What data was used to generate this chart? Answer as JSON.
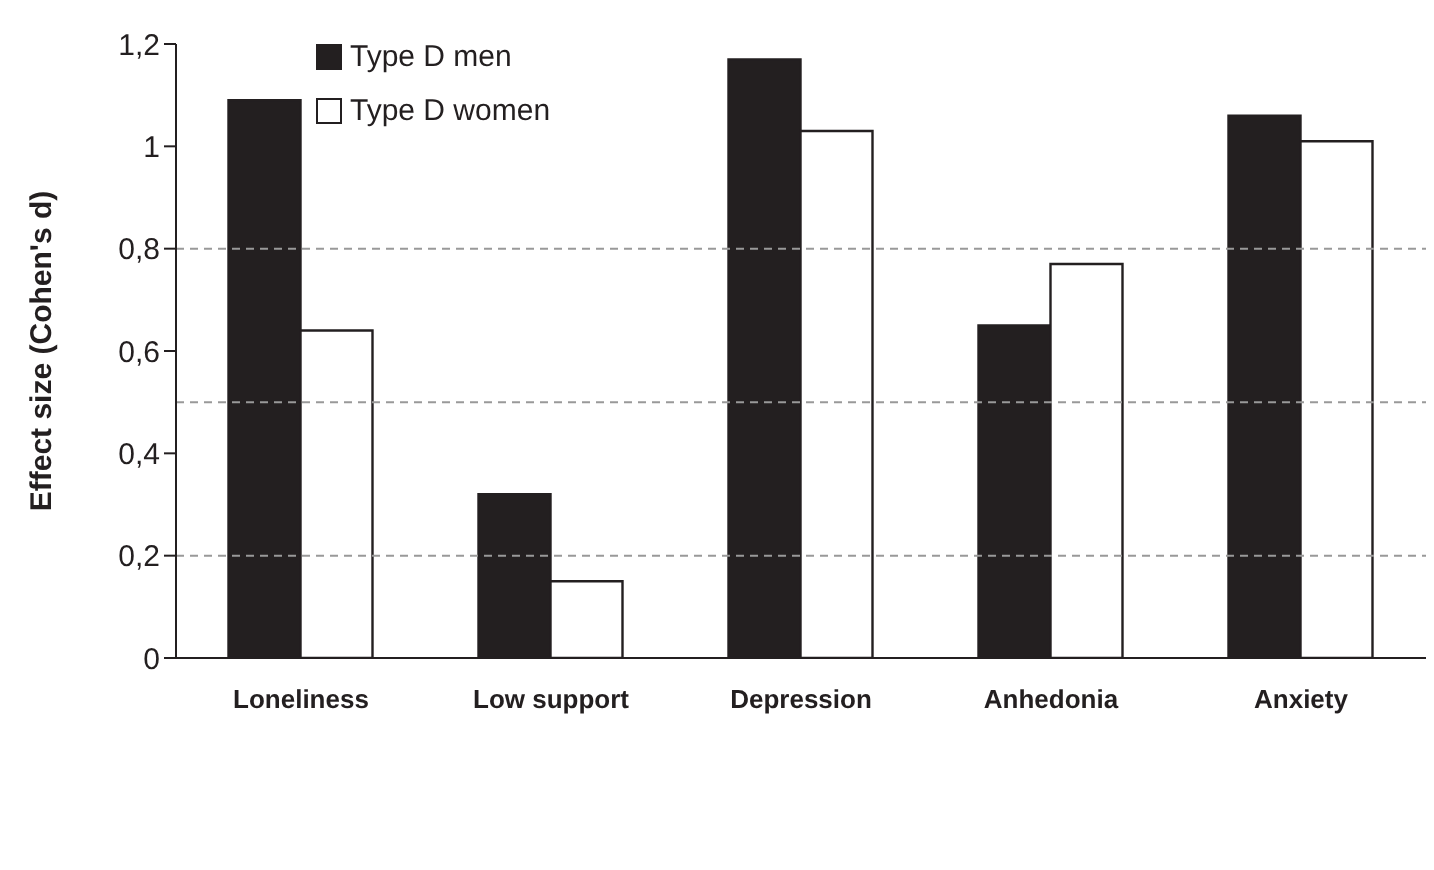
{
  "chart_data": {
    "type": "bar",
    "ylabel": "Effect size (Cohen's d)",
    "categories": [
      "Loneliness",
      "Low support",
      "Depression",
      "Anhedonia",
      "Anxiety"
    ],
    "series": [
      {
        "name": "Type D men",
        "color": "#231f20",
        "values": [
          1.09,
          0.32,
          1.17,
          0.65,
          1.06
        ]
      },
      {
        "name": "Type D women",
        "color": "#ffffff",
        "values": [
          0.64,
          0.15,
          1.03,
          0.77,
          1.01
        ]
      }
    ],
    "ylim": [
      0,
      1.2
    ],
    "yticks": [
      0,
      {
        "value": 0.2,
        "label": "0,2"
      },
      {
        "value": 0.4,
        "label": "0,4"
      },
      {
        "value": 0.6,
        "label": "0,6"
      },
      {
        "value": 0.8,
        "label": "0,8"
      },
      1,
      {
        "value": 1.2,
        "label": "1,2"
      }
    ],
    "ref_lines": [
      {
        "axis": "y",
        "value": 0.2,
        "label": null,
        "color": "#999999",
        "line_style": "dashed"
      },
      {
        "axis": "y",
        "value": 0.5,
        "label": null,
        "color": "#999999",
        "line_style": "dashed"
      },
      {
        "axis": "y",
        "value": 0.8,
        "label": null,
        "color": "#999999",
        "line_style": "dashed"
      }
    ],
    "grid": false,
    "legend": "top left"
  }
}
